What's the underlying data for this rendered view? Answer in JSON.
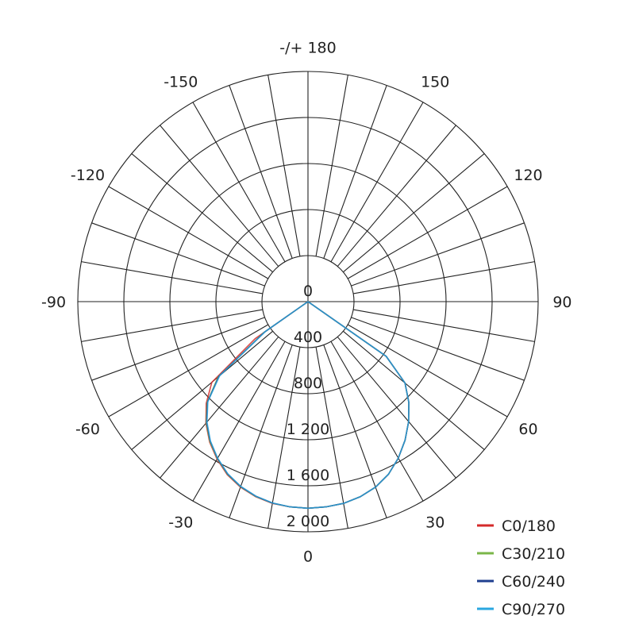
{
  "chart_data": {
    "type": "polar",
    "angle_labels": [
      {
        "angle": 180,
        "text": "-/+ 180"
      },
      {
        "angle": 150,
        "text": "150"
      },
      {
        "angle": -150,
        "text": "-150"
      },
      {
        "angle": 120,
        "text": "120"
      },
      {
        "angle": -120,
        "text": "-120"
      },
      {
        "angle": 90,
        "text": "90"
      },
      {
        "angle": -90,
        "text": "-90"
      },
      {
        "angle": 60,
        "text": "60"
      },
      {
        "angle": -60,
        "text": "-60"
      },
      {
        "angle": 30,
        "text": "30"
      },
      {
        "angle": -30,
        "text": "-30"
      },
      {
        "angle": 0,
        "text": "0"
      }
    ],
    "radial_ticks": [
      0,
      400,
      800,
      1200,
      1600,
      2000
    ],
    "radial_tick_labels": [
      "0",
      "400",
      "800",
      "1 200",
      "1 600",
      "2 000"
    ],
    "rlim": [
      0,
      2000
    ],
    "angle_step": 10,
    "grid": true,
    "legend_position": "bottom-right",
    "angles": [
      -90,
      -60,
      -55,
      -50,
      -45,
      -40,
      -35,
      -30,
      -25,
      -20,
      -15,
      -10,
      -5,
      0,
      5,
      10,
      15,
      20,
      25,
      30,
      35,
      40,
      45,
      50,
      55,
      60,
      90
    ],
    "series": [
      {
        "name": "C0/180",
        "color": "#d42a2a",
        "values": [
          0,
          0,
          560,
          1090,
          1250,
          1380,
          1490,
          1580,
          1660,
          1715,
          1755,
          1780,
          1790,
          1795,
          1790,
          1780,
          1755,
          1715,
          1655,
          1570,
          1470,
          1360,
          1240,
          1100,
          830,
          0,
          0
        ]
      },
      {
        "name": "C30/210",
        "color": "#7ab648",
        "values": [
          0,
          0,
          470,
          1020,
          1240,
          1375,
          1485,
          1575,
          1655,
          1712,
          1752,
          1778,
          1790,
          1795,
          1790,
          1780,
          1755,
          1715,
          1655,
          1570,
          1470,
          1360,
          1240,
          1100,
          830,
          0,
          0
        ]
      },
      {
        "name": "C60/240",
        "color": "#1f3f8f",
        "values": [
          0,
          0,
          460,
          1010,
          1235,
          1370,
          1480,
          1572,
          1652,
          1710,
          1750,
          1777,
          1790,
          1795,
          1790,
          1780,
          1755,
          1715,
          1655,
          1570,
          1470,
          1360,
          1240,
          1100,
          830,
          0,
          0
        ]
      },
      {
        "name": "C90/270",
        "color": "#2aa7e0",
        "values": [
          0,
          0,
          450,
          1000,
          1230,
          1365,
          1478,
          1570,
          1650,
          1708,
          1750,
          1776,
          1790,
          1795,
          1790,
          1780,
          1755,
          1715,
          1655,
          1570,
          1470,
          1360,
          1240,
          1100,
          830,
          0,
          0
        ]
      }
    ]
  }
}
